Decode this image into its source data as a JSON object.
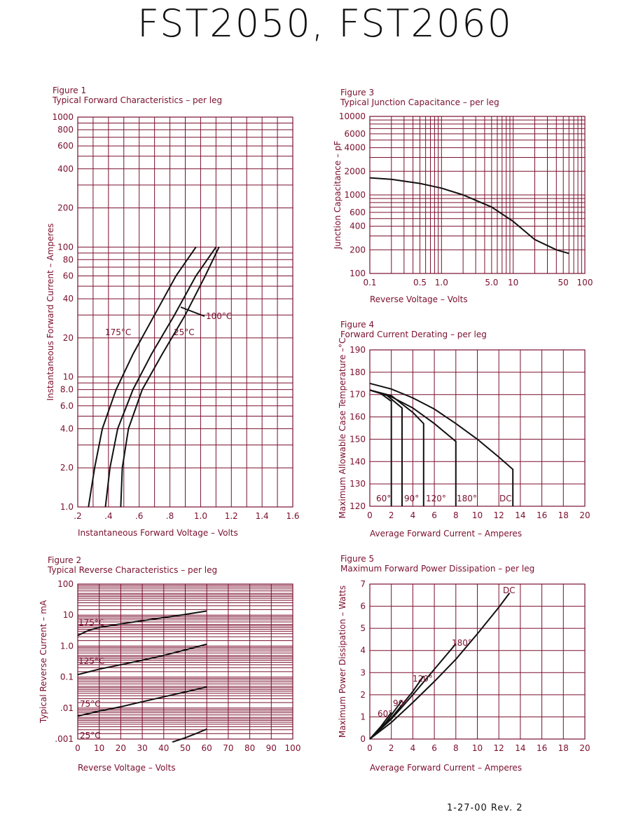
{
  "page": {
    "title": "FST2050, FST2060",
    "revision": "1-27-00   Rev. 2"
  },
  "colors": {
    "grid": "#7a0f2e",
    "curve": "#111111",
    "text": "#7a0f2e"
  },
  "chart_data": [
    {
      "id": "fig1",
      "figure_label": "Figure 1",
      "title": "Typical Forward Characteristics – per leg",
      "type": "line",
      "xlabel": "Instantaneous Forward Voltage – Volts",
      "ylabel": "Instantaneous Forward Current – Amperes",
      "xscale": "linear",
      "yscale": "log",
      "xlim": [
        0.2,
        1.6
      ],
      "ylim": [
        1,
        1000
      ],
      "x_ticks": [
        0.2,
        0.4,
        0.6,
        0.8,
        1.0,
        1.2,
        1.4,
        1.6
      ],
      "x_tick_labels": [
        ".2",
        ".4",
        ".6",
        ".8",
        "1.0",
        "1.2",
        "1.4",
        "1.6"
      ],
      "y_ticks": [
        1,
        2,
        4,
        6,
        8,
        10,
        20,
        40,
        60,
        80,
        100,
        200,
        400,
        600,
        800,
        1000
      ],
      "y_tick_labels": [
        "1.0",
        "2.0",
        "4.0",
        "6.0",
        "8.0",
        "10",
        "20",
        "40",
        "60",
        "80",
        "100",
        "200",
        "400",
        "600",
        "800",
        "1000"
      ],
      "series": [
        {
          "name": "175°C",
          "x": [
            0.27,
            0.31,
            0.36,
            0.45,
            0.56,
            0.7,
            0.84,
            0.97
          ],
          "y": [
            1,
            2,
            4,
            8,
            15,
            30,
            60,
            100
          ]
        },
        {
          "name": "100°C",
          "x": [
            0.38,
            0.41,
            0.46,
            0.56,
            0.68,
            0.83,
            0.97,
            1.1
          ],
          "y": [
            1,
            2,
            4,
            8,
            15,
            30,
            60,
            100
          ]
        },
        {
          "name": "25°C",
          "x": [
            0.48,
            0.49,
            0.53,
            0.62,
            0.75,
            0.9,
            1.03,
            1.12
          ],
          "y": [
            1,
            2,
            4,
            8,
            15,
            30,
            60,
            100
          ]
        }
      ]
    },
    {
      "id": "fig2",
      "figure_label": "Figure 2",
      "title": "Typical Reverse Characteristics – per leg",
      "type": "line",
      "xlabel": "Reverse Voltage – Volts",
      "ylabel": "Typical Reverse Current – mA",
      "xscale": "linear",
      "yscale": "log",
      "xlim": [
        0,
        100
      ],
      "ylim": [
        0.001,
        100
      ],
      "x_ticks": [
        0,
        10,
        20,
        30,
        40,
        50,
        60,
        70,
        80,
        90,
        100
      ],
      "x_tick_labels": [
        "0",
        "10",
        "20",
        "30",
        "40",
        "50",
        "60",
        "70",
        "80",
        "90",
        "100"
      ],
      "y_ticks": [
        0.001,
        0.01,
        0.1,
        1,
        10,
        100
      ],
      "y_tick_labels": [
        ".001",
        ".01",
        "0.1",
        "1.0",
        "10",
        "100"
      ],
      "series": [
        {
          "name": "175°C",
          "x": [
            0,
            5,
            10,
            20,
            30,
            40,
            50,
            60
          ],
          "y": [
            2.2,
            3.2,
            4.0,
            5.2,
            6.6,
            8.3,
            10.5,
            13.5
          ]
        },
        {
          "name": "125°C",
          "x": [
            0,
            10,
            20,
            30,
            40,
            50,
            60
          ],
          "y": [
            0.12,
            0.18,
            0.25,
            0.35,
            0.5,
            0.75,
            1.15
          ]
        },
        {
          "name": "75°C",
          "x": [
            0,
            10,
            20,
            30,
            40,
            50,
            60
          ],
          "y": [
            0.0055,
            0.008,
            0.011,
            0.016,
            0.023,
            0.033,
            0.048
          ]
        },
        {
          "name": "25°C",
          "x": [
            44,
            50,
            55,
            60
          ],
          "y": [
            0.0008,
            0.0011,
            0.0015,
            0.0021
          ]
        }
      ]
    },
    {
      "id": "fig3",
      "figure_label": "Figure 3",
      "title": "Typical Junction Capacitance – per leg",
      "type": "line",
      "xlabel": "Reverse Voltage – Volts",
      "ylabel": "Junction Capacitance – pF",
      "xscale": "log",
      "yscale": "log",
      "xlim": [
        0.1,
        100
      ],
      "ylim": [
        100,
        10000
      ],
      "x_ticks": [
        0.1,
        0.5,
        1,
        5,
        10,
        50,
        100
      ],
      "x_tick_labels": [
        "0.1",
        "0.5",
        "1.0",
        "5.0",
        "10",
        "50",
        "100"
      ],
      "y_ticks": [
        100,
        200,
        400,
        600,
        1000,
        2000,
        4000,
        6000,
        10000
      ],
      "y_tick_labels": [
        "100",
        "200",
        "400",
        "600",
        "1000",
        "2000",
        "4000",
        "6000",
        "10000"
      ],
      "series": [
        {
          "name": "",
          "x": [
            0.1,
            0.2,
            0.5,
            1,
            2,
            5,
            10,
            20,
            40,
            60
          ],
          "y": [
            1650,
            1580,
            1400,
            1220,
            1000,
            700,
            460,
            270,
            200,
            180
          ]
        }
      ]
    },
    {
      "id": "fig4",
      "figure_label": "Figure 4",
      "title": "Forward Current Derating – per leg",
      "type": "line",
      "xlabel": "Average Forward Current – Amperes",
      "ylabel": "Maximum Allowable Case Temperature –°C",
      "xscale": "linear",
      "yscale": "linear",
      "xlim": [
        0,
        20
      ],
      "ylim": [
        120,
        190
      ],
      "x_ticks": [
        0,
        2,
        4,
        6,
        8,
        10,
        12,
        14,
        16,
        18,
        20
      ],
      "x_tick_labels": [
        "0",
        "2",
        "4",
        "6",
        "8",
        "10",
        "12",
        "14",
        "16",
        "18",
        "20"
      ],
      "y_ticks": [
        120,
        130,
        140,
        150,
        160,
        170,
        180,
        190
      ],
      "y_tick_labels": [
        "120",
        "130",
        "140",
        "150",
        "160",
        "170",
        "180",
        "190"
      ],
      "series": [
        {
          "name": "60°",
          "x": [
            0,
            1,
            2,
            2,
            2
          ],
          "y": [
            172,
            170.5,
            167,
            166,
            120
          ]
        },
        {
          "name": "90°",
          "x": [
            0,
            1.5,
            3,
            3
          ],
          "y": [
            172,
            170,
            164,
            120
          ]
        },
        {
          "name": "120°",
          "x": [
            0,
            2,
            4,
            5,
            5
          ],
          "y": [
            172,
            169.5,
            162,
            157,
            120
          ]
        },
        {
          "name": "180°",
          "x": [
            0,
            2,
            4,
            6,
            8,
            8
          ],
          "y": [
            172,
            169,
            164,
            157,
            149,
            120
          ]
        },
        {
          "name": "DC",
          "x": [
            0,
            2,
            4,
            6,
            8,
            10,
            12,
            13.3,
            13.3
          ],
          "y": [
            175,
            172.5,
            168.5,
            163.5,
            157,
            150,
            142,
            136.5,
            120
          ]
        }
      ]
    },
    {
      "id": "fig5",
      "figure_label": "Figure 5",
      "title": "Maximum Forward Power Dissipation – per leg",
      "type": "line",
      "xlabel": "Average Forward Current – Amperes",
      "ylabel": "Maximum Power Dissipation – Watts",
      "xscale": "linear",
      "yscale": "linear",
      "xlim": [
        0,
        20
      ],
      "ylim": [
        0,
        7
      ],
      "x_ticks": [
        0,
        2,
        4,
        6,
        8,
        10,
        12,
        14,
        16,
        18,
        20
      ],
      "x_tick_labels": [
        "0",
        "2",
        "4",
        "6",
        "8",
        "10",
        "12",
        "14",
        "16",
        "18",
        "20"
      ],
      "y_ticks": [
        0,
        1,
        2,
        3,
        4,
        5,
        6,
        7
      ],
      "y_tick_labels": [
        "0",
        "1",
        "2",
        "3",
        "4",
        "5",
        "6",
        "7"
      ],
      "series": [
        {
          "name": "60°",
          "x": [
            0,
            1,
            2
          ],
          "y": [
            0,
            0.55,
            1.2
          ]
        },
        {
          "name": "90°",
          "x": [
            0,
            1.5,
            3
          ],
          "y": [
            0,
            0.75,
            1.75
          ]
        },
        {
          "name": "120°",
          "x": [
            0,
            2,
            4,
            5
          ],
          "y": [
            0,
            0.95,
            2.15,
            2.85
          ]
        },
        {
          "name": "180°",
          "x": [
            0,
            2,
            4,
            6,
            8
          ],
          "y": [
            0,
            0.9,
            2.0,
            3.15,
            4.3
          ]
        },
        {
          "name": "DC",
          "x": [
            0,
            2,
            4,
            6,
            8,
            10,
            12,
            13
          ],
          "y": [
            0,
            0.75,
            1.65,
            2.6,
            3.6,
            4.75,
            5.95,
            6.6
          ]
        }
      ]
    }
  ]
}
